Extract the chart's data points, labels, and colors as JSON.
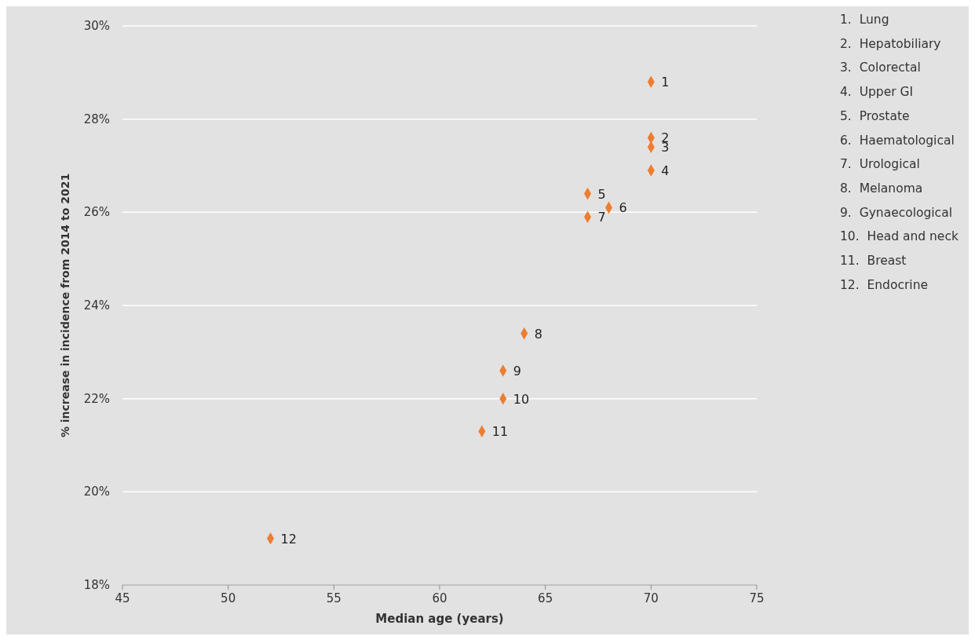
{
  "chart_data": {
    "type": "scatter",
    "xlabel": "Median age (years)",
    "ylabel": "% increase in incidence from 2014 to 2021",
    "x": [
      70,
      70,
      70,
      70,
      67,
      68,
      67,
      64,
      63,
      63,
      62,
      52
    ],
    "series": [
      {
        "color": "#ed7d31",
        "values": [
          28.8,
          27.6,
          27.4,
          26.9,
          26.4,
          26.1,
          25.9,
          23.4,
          22.6,
          22.0,
          21.3,
          19.0
        ]
      }
    ],
    "xlim": [
      45,
      75
    ],
    "xticks": [
      45,
      50,
      55,
      60,
      65,
      70,
      75
    ],
    "ylim": [
      18,
      30
    ],
    "yticks": [
      {
        "value": 18,
        "label": "18%"
      },
      {
        "value": 20,
        "label": "20%"
      },
      {
        "value": 22,
        "label": "22%"
      },
      {
        "value": 24,
        "label": "24%"
      },
      {
        "value": 26,
        "label": "26%"
      },
      {
        "value": 28,
        "label": "28%"
      },
      {
        "value": 30,
        "label": "30%"
      }
    ],
    "grid": "y",
    "marker": "diamond",
    "annotations": [
      {
        "text": "1",
        "x": 70,
        "y": 28.8
      },
      {
        "text": "2",
        "x": 70,
        "y": 27.6
      },
      {
        "text": "3",
        "x": 70,
        "y": 27.4
      },
      {
        "text": "4",
        "x": 70,
        "y": 26.9
      },
      {
        "text": "5",
        "x": 67,
        "y": 26.4
      },
      {
        "text": "6",
        "x": 68,
        "y": 26.1
      },
      {
        "text": "7",
        "x": 67,
        "y": 25.9
      },
      {
        "text": "8",
        "x": 64,
        "y": 23.4
      },
      {
        "text": "9",
        "x": 63,
        "y": 22.6
      },
      {
        "text": "10",
        "x": 63,
        "y": 22.0
      },
      {
        "text": "11",
        "x": 62,
        "y": 21.3
      },
      {
        "text": "12",
        "x": 52,
        "y": 19.0
      },
      "1.  Lung",
      "2.  Hepatobiliary",
      "3.  Colorectal",
      "4.  Upper GI",
      "5.  Prostate",
      "6.  Haematological",
      "7.  Urological",
      "8.  Melanoma",
      "9.  Gynaecological",
      "10.  Head and neck",
      "11.  Breast",
      "12.  Endocrine"
    ]
  }
}
